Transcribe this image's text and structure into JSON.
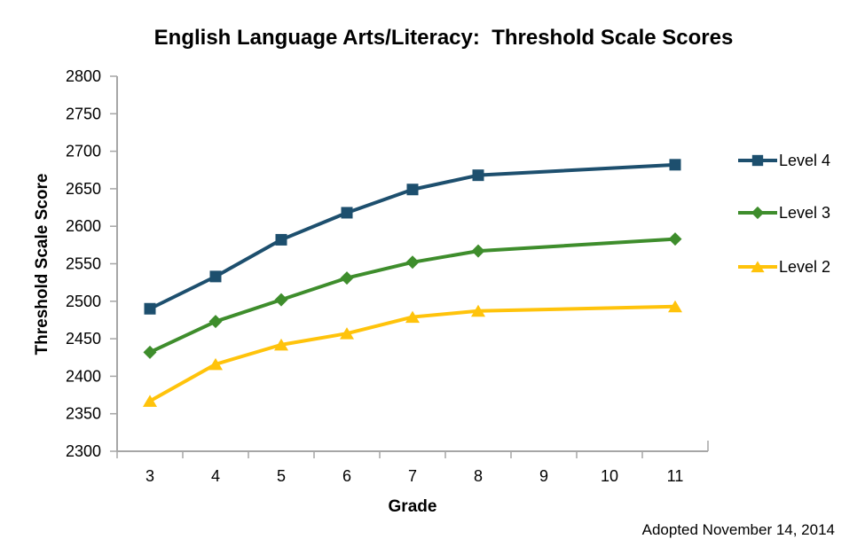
{
  "title": "English Language Arts/Literacy:  Threshold Scale Scores",
  "footer": "Adopted November 14, 2014",
  "chart_data": {
    "type": "line",
    "title": "English Language Arts/Literacy:  Threshold Scale Scores",
    "xlabel": "Grade",
    "ylabel": "Threshold Scale Score",
    "x_tick_labels": [
      "3",
      "4",
      "5",
      "6",
      "7",
      "8",
      "9",
      "10",
      "11"
    ],
    "y_ticks": [
      2300,
      2350,
      2400,
      2450,
      2500,
      2550,
      2600,
      2650,
      2700,
      2750,
      2800
    ],
    "ylim": [
      2300,
      2800
    ],
    "grid": false,
    "legend_position": "right",
    "axis_color": "#A6A6A6",
    "note": "Adopted November 14, 2014",
    "series": [
      {
        "name": "Level 4",
        "marker": "square",
        "color": "#1D4F6E",
        "x": [
          3,
          4,
          5,
          6,
          7,
          8,
          11
        ],
        "values": [
          2490,
          2533,
          2582,
          2618,
          2649,
          2668,
          2682
        ]
      },
      {
        "name": "Level 3",
        "marker": "diamond",
        "color": "#3E8D2C",
        "x": [
          3,
          4,
          5,
          6,
          7,
          8,
          11
        ],
        "values": [
          2432,
          2473,
          2502,
          2531,
          2552,
          2567,
          2583
        ]
      },
      {
        "name": "Level 2",
        "marker": "triangle",
        "color": "#FFC30B",
        "x": [
          3,
          4,
          5,
          6,
          7,
          8,
          11
        ],
        "values": [
          2367,
          2416,
          2442,
          2457,
          2479,
          2487,
          2493
        ]
      }
    ]
  }
}
